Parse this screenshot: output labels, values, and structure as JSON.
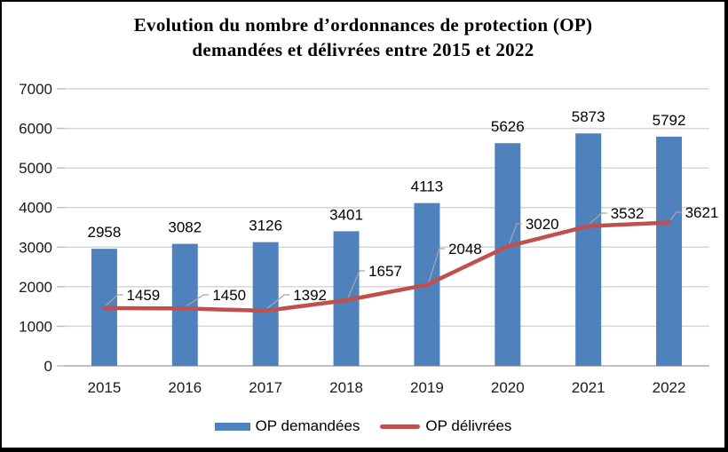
{
  "title": {
    "line1": "Evolution du nombre d’ordonnances de protection (OP)",
    "line2": "demandées et délivrées entre 2015 et 2022"
  },
  "chart_data": {
    "type": "bar+line",
    "categories": [
      "2015",
      "2016",
      "2017",
      "2018",
      "2019",
      "2020",
      "2021",
      "2022"
    ],
    "series": [
      {
        "name": "OP demandées",
        "type": "bar",
        "color": "#4F81BD",
        "values": [
          2958,
          3082,
          3126,
          3401,
          4113,
          5626,
          5873,
          5792
        ]
      },
      {
        "name": "OP délivrées",
        "type": "line",
        "color": "#C0504D",
        "values": [
          1459,
          1450,
          1392,
          1657,
          2048,
          3020,
          3532,
          3621
        ]
      }
    ],
    "ylim": [
      0,
      7000
    ],
    "yticks": [
      0,
      1000,
      2000,
      3000,
      4000,
      5000,
      6000,
      7000
    ],
    "grid": "horizontal",
    "data_labels": true,
    "legend_position": "bottom"
  },
  "colors": {
    "gridline": "#D6D6D6",
    "axis_line": "#BFBFBF",
    "tick": "#BFBFBF",
    "leader_line": "#A6A6A6",
    "text": "#1a1a1a",
    "frame_border": "#000000"
  }
}
